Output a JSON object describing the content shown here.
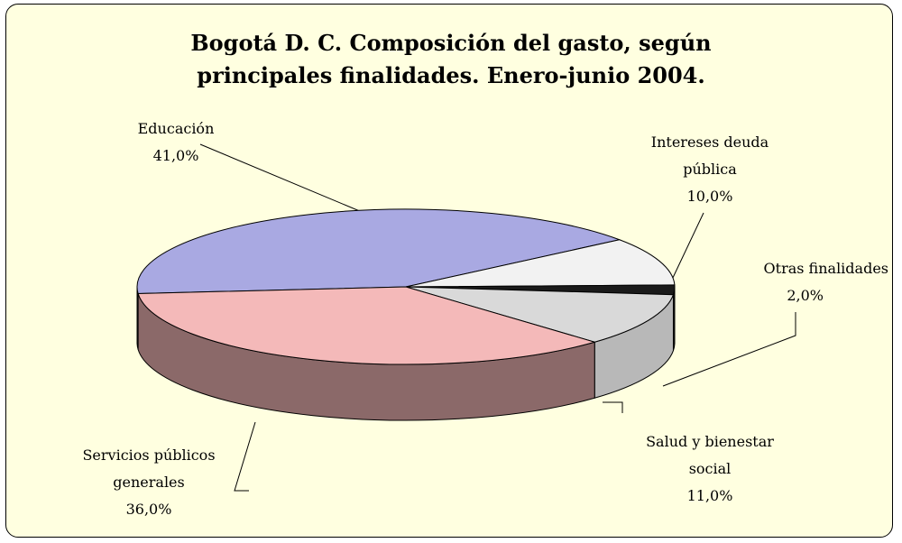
{
  "chart_data": {
    "type": "pie",
    "title": "Bogotá D. C. Composición del gasto, según principales finalidades. Enero-junio 2004.",
    "categories": [
      "Educación",
      "Intereses deuda pública",
      "Otras finalidades",
      "Salud y bienestar social",
      "Servicios públicos generales"
    ],
    "values": [
      41,
      10,
      2,
      11,
      36
    ],
    "value_labels": [
      "41,0%",
      "10,0%",
      "2,0%",
      "11,0%",
      "36,0%"
    ],
    "colors": [
      "#a9a9e2",
      "#f2f2f2",
      "#1a1a1a",
      "#d9d9d9",
      "#f4b9b9"
    ]
  }
}
